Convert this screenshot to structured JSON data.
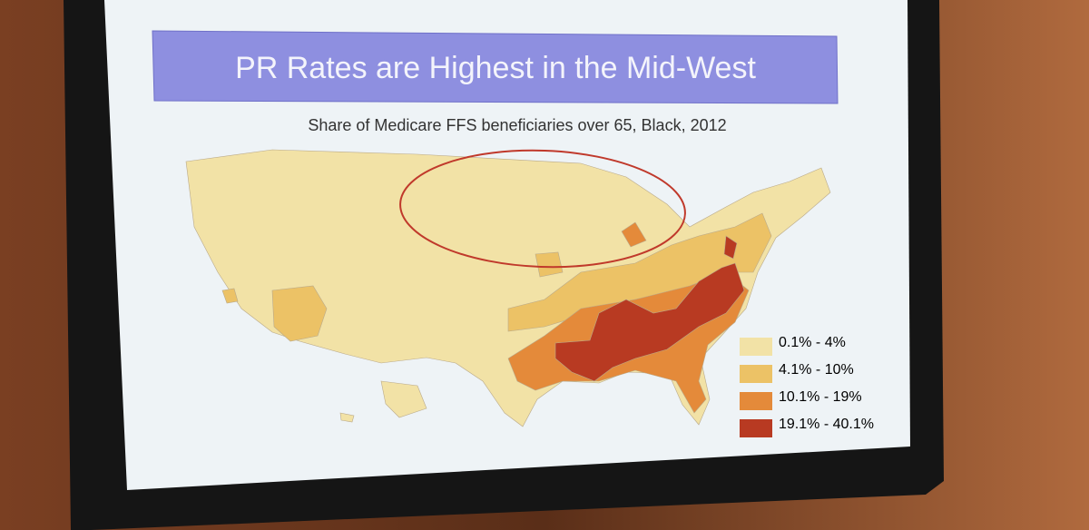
{
  "slide": {
    "title": "PR Rates are Highest in the Mid-West",
    "subtitle": "Share of Medicare FFS beneficiaries over 65, Black, 2012"
  },
  "legend": [
    {
      "label": "0.1% - 4%",
      "color": "#f2e2a6"
    },
    {
      "label": "4.1% - 10%",
      "color": "#ecc266"
    },
    {
      "label": "10.1% - 19%",
      "color": "#e48a3a"
    },
    {
      "label": "19.1% - 40.1%",
      "color": "#b83a22"
    }
  ]
}
